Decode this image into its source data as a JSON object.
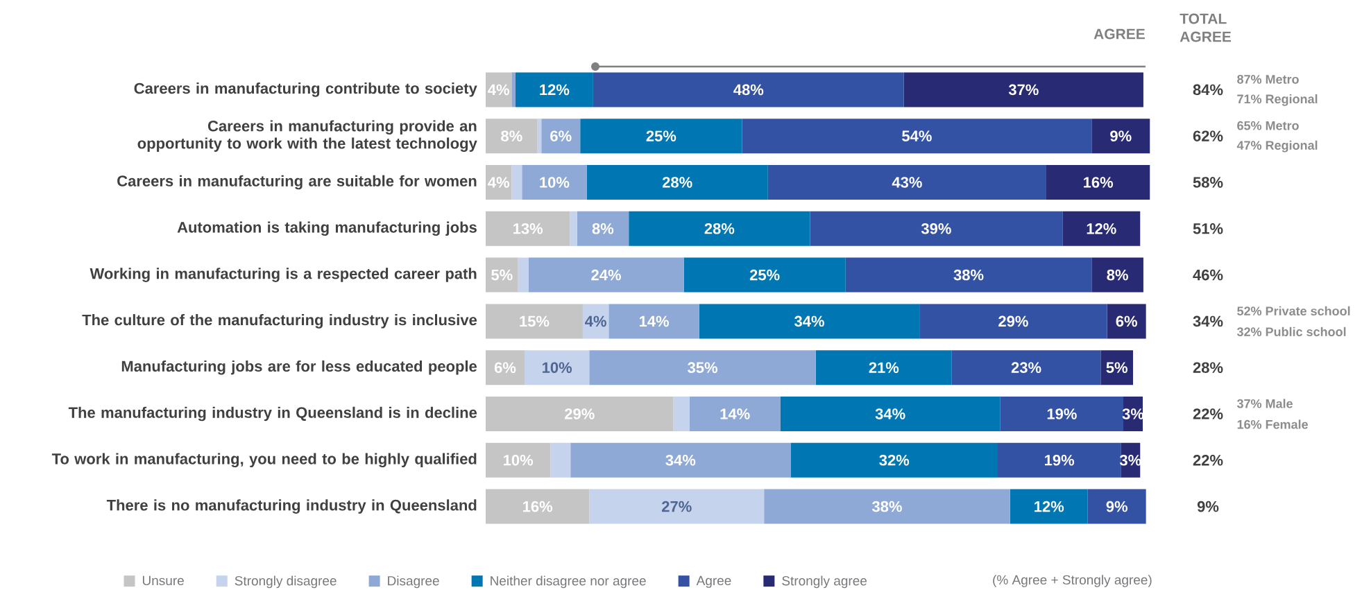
{
  "chart_data": {
    "type": "bar",
    "orientation": "horizontal",
    "stacked": true,
    "legend": "bottom",
    "tick_labels": "y",
    "xlim": [
      0,
      103
    ],
    "categories": [
      "Careers in manufacturing contribute to society",
      "Careers in manufacturing provide an opportunity to work with the latest technology",
      "Careers in manufacturing are suitable for women",
      "Automation is taking manufacturing jobs",
      "Working in manufacturing is a respected career path",
      "The culture of the manufacturing industry is inclusive",
      "Manufacturing jobs are for less educated people",
      "The manufacturing industry in Queensland is in decline",
      "To work in manufacturing, you need to be highly qualified",
      "There is no manufacturing industry in Queensland"
    ],
    "series": [
      {
        "name": "Unsure",
        "color": "#c6c5c6",
        "values": [
          4,
          8,
          4,
          13,
          5,
          15,
          6,
          29,
          10,
          16
        ],
        "value_labels": [
          "4%",
          "8%",
          "4%",
          "13%",
          "5%",
          "15%",
          "6%",
          "29%",
          "10%",
          "16%"
        ]
      },
      {
        "name": "Strongly disagree",
        "color": "#c5d3ec",
        "values": [
          null,
          0.6,
          1.6,
          1.1,
          1.6,
          4,
          10,
          2.5,
          3.1,
          27
        ],
        "value_labels": [
          null,
          null,
          null,
          null,
          null,
          "4%",
          "10%",
          null,
          null,
          "27%"
        ]
      },
      {
        "name": "Disagree",
        "color": "#8fa9d6",
        "values": [
          0.6,
          6,
          10,
          8,
          24,
          14,
          35,
          14,
          34,
          38
        ],
        "value_labels": [
          null,
          "6%",
          "10%",
          "8%",
          "24%",
          "14%",
          "35%",
          "14%",
          "34%",
          "38%"
        ]
      },
      {
        "name": "Neither disagree nor agree",
        "color": "#0076b3",
        "values": [
          12,
          25,
          28,
          28,
          25,
          34,
          21,
          34,
          32,
          12
        ],
        "value_labels": [
          "12%",
          "25%",
          "28%",
          "28%",
          "25%",
          "34%",
          "21%",
          "34%",
          "32%",
          "12%"
        ]
      },
      {
        "name": "Agree",
        "color": "#3452a4",
        "values": [
          48,
          54,
          43,
          39,
          38,
          29,
          23,
          19,
          19,
          9
        ],
        "value_labels": [
          "48%",
          "54%",
          "43%",
          "39%",
          "38%",
          "29%",
          "23%",
          "19%",
          "19%",
          "9%"
        ]
      },
      {
        "name": "Strongly agree",
        "color": "#282a74",
        "values": [
          37,
          9,
          16,
          12,
          8,
          6,
          5,
          3,
          3,
          null
        ],
        "value_labels": [
          "37%",
          "9%",
          "16%",
          "12%",
          "8%",
          "6%",
          "5%",
          "3%",
          "3%",
          null
        ]
      }
    ],
    "annotations": [
      "AGREE",
      "TOTAL AGREE",
      "(% Agree + Strongly agree)",
      "84%",
      "62%",
      "58%",
      "51%",
      "46%",
      "34%",
      "28%",
      "22%",
      "22%",
      "9%",
      "87% Metro",
      "71% Regional",
      "65% Metro",
      "47% Regional",
      "52% Private school",
      "32% Public school",
      "37% Male",
      "16% Female"
    ]
  }
}
